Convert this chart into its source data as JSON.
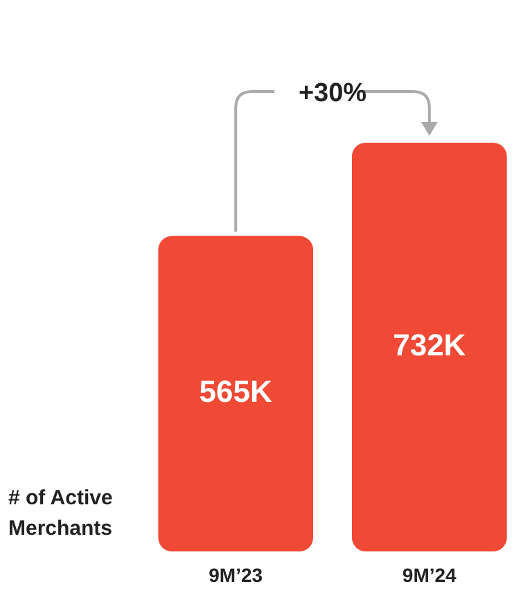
{
  "chart_data": {
    "type": "bar",
    "ylabel": "# of Active Merchants",
    "categories": [
      "9M’23",
      "9M’24"
    ],
    "values": [
      565,
      732
    ],
    "value_labels": [
      "565K",
      "732K"
    ],
    "color": "#f04935",
    "annotations": [
      "+30%"
    ]
  }
}
